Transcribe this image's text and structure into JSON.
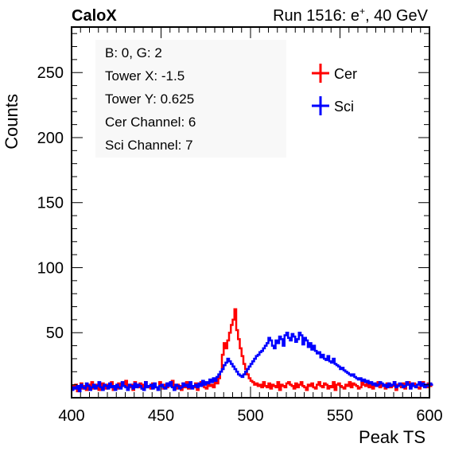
{
  "header": {
    "left_title": "CaloX",
    "right_title_prefix": "Run 1516: e",
    "right_title_sup": "+",
    "right_title_suffix": ", 40 GeV"
  },
  "info_box": {
    "lines": [
      "B: 0, G: 2",
      "Tower X: -1.5",
      "Tower Y: 0.625",
      "Cer Channel: 6",
      "Sci Channel: 7"
    ]
  },
  "chart_data": {
    "type": "line",
    "xlabel": "Peak TS",
    "ylabel": "Counts",
    "xlim": [
      400,
      600
    ],
    "ylim": [
      0,
      285
    ],
    "x_ticks": [
      400,
      450,
      500,
      550,
      600
    ],
    "y_ticks": [
      50,
      100,
      150,
      200,
      250
    ],
    "grid": false,
    "legend_position": "top-right",
    "series": [
      {
        "name": "Cer",
        "color": "#ff0000",
        "x_start": 400,
        "bin_width": 1,
        "values": [
          9,
          7,
          10,
          5,
          8,
          11,
          7,
          9,
          6,
          10,
          8,
          12,
          7,
          9,
          10,
          6,
          8,
          11,
          9,
          7,
          10,
          8,
          12,
          6,
          9,
          7,
          11,
          8,
          10,
          9,
          13,
          7,
          8,
          10,
          6,
          12,
          9,
          8,
          11,
          7,
          10,
          12,
          8,
          9,
          7,
          11,
          10,
          8,
          6,
          12,
          9,
          7,
          10,
          8,
          11,
          9,
          13,
          8,
          7,
          10,
          9,
          6,
          11,
          8,
          12,
          7,
          10,
          9,
          8,
          11,
          6,
          10,
          12,
          9,
          8,
          7,
          11,
          9,
          10,
          8,
          12,
          11,
          15,
          20,
          33,
          42,
          38,
          44,
          50,
          56,
          60,
          68,
          52,
          45,
          38,
          32,
          26,
          22,
          18,
          15,
          13,
          12,
          10,
          11,
          9,
          10,
          8,
          12,
          9,
          8,
          11,
          7,
          10,
          9,
          8,
          12,
          6,
          10,
          9,
          8,
          11,
          12,
          10,
          9,
          7,
          11,
          8,
          10,
          12,
          9,
          8,
          6,
          10,
          9,
          11,
          8,
          7,
          10,
          12,
          9,
          8,
          11,
          10,
          7,
          9,
          8,
          12,
          6,
          10,
          11,
          9,
          8,
          7,
          10,
          9,
          12,
          8,
          11,
          10,
          9,
          7,
          8,
          12,
          10,
          9,
          11,
          8,
          10,
          7,
          9,
          11,
          12,
          8,
          10,
          9,
          7,
          11,
          10,
          8,
          9,
          12,
          6,
          10,
          9,
          8,
          11,
          7,
          10,
          12,
          8,
          9,
          11,
          10,
          8,
          7,
          9,
          12,
          10,
          8,
          11,
          9,
          10
        ]
      },
      {
        "name": "Sci",
        "color": "#0000ff",
        "x_start": 400,
        "bin_width": 1,
        "values": [
          6,
          8,
          7,
          9,
          5,
          10,
          8,
          7,
          11,
          9,
          6,
          8,
          10,
          7,
          9,
          12,
          8,
          6,
          10,
          9,
          7,
          11,
          8,
          9,
          6,
          10,
          8,
          7,
          12,
          9,
          8,
          6,
          10,
          9,
          7,
          11,
          8,
          10,
          9,
          7,
          6,
          12,
          8,
          9,
          10,
          7,
          11,
          8,
          6,
          9,
          10,
          8,
          7,
          11,
          9,
          12,
          8,
          6,
          10,
          9,
          7,
          8,
          11,
          9,
          10,
          8,
          12,
          7,
          9,
          10,
          8,
          11,
          9,
          13,
          10,
          12,
          11,
          14,
          12,
          15,
          13,
          16,
          18,
          20,
          22,
          25,
          27,
          30,
          28,
          26,
          24,
          22,
          20,
          18,
          17,
          16,
          18,
          20,
          22,
          24,
          26,
          28,
          30,
          32,
          33,
          35,
          36,
          38,
          40,
          42,
          46,
          44,
          40,
          38,
          44,
          42,
          47,
          45,
          40,
          48,
          50,
          46,
          44,
          49,
          47,
          43,
          45,
          50,
          48,
          41,
          46,
          44,
          39,
          42,
          37,
          40,
          36,
          34,
          35,
          31,
          33,
          30,
          29,
          32,
          28,
          27,
          30,
          26,
          25,
          24,
          22,
          23,
          21,
          20,
          19,
          18,
          17,
          18,
          16,
          15,
          14,
          15,
          13,
          14,
          12,
          13,
          11,
          12,
          10,
          11,
          9,
          10,
          12,
          11,
          9,
          10,
          8,
          11,
          9,
          10,
          12,
          8,
          9,
          11,
          10,
          8,
          9,
          12,
          10,
          7,
          11,
          9,
          8,
          10,
          12,
          9,
          11,
          8,
          10,
          9,
          11,
          10
        ]
      }
    ]
  }
}
